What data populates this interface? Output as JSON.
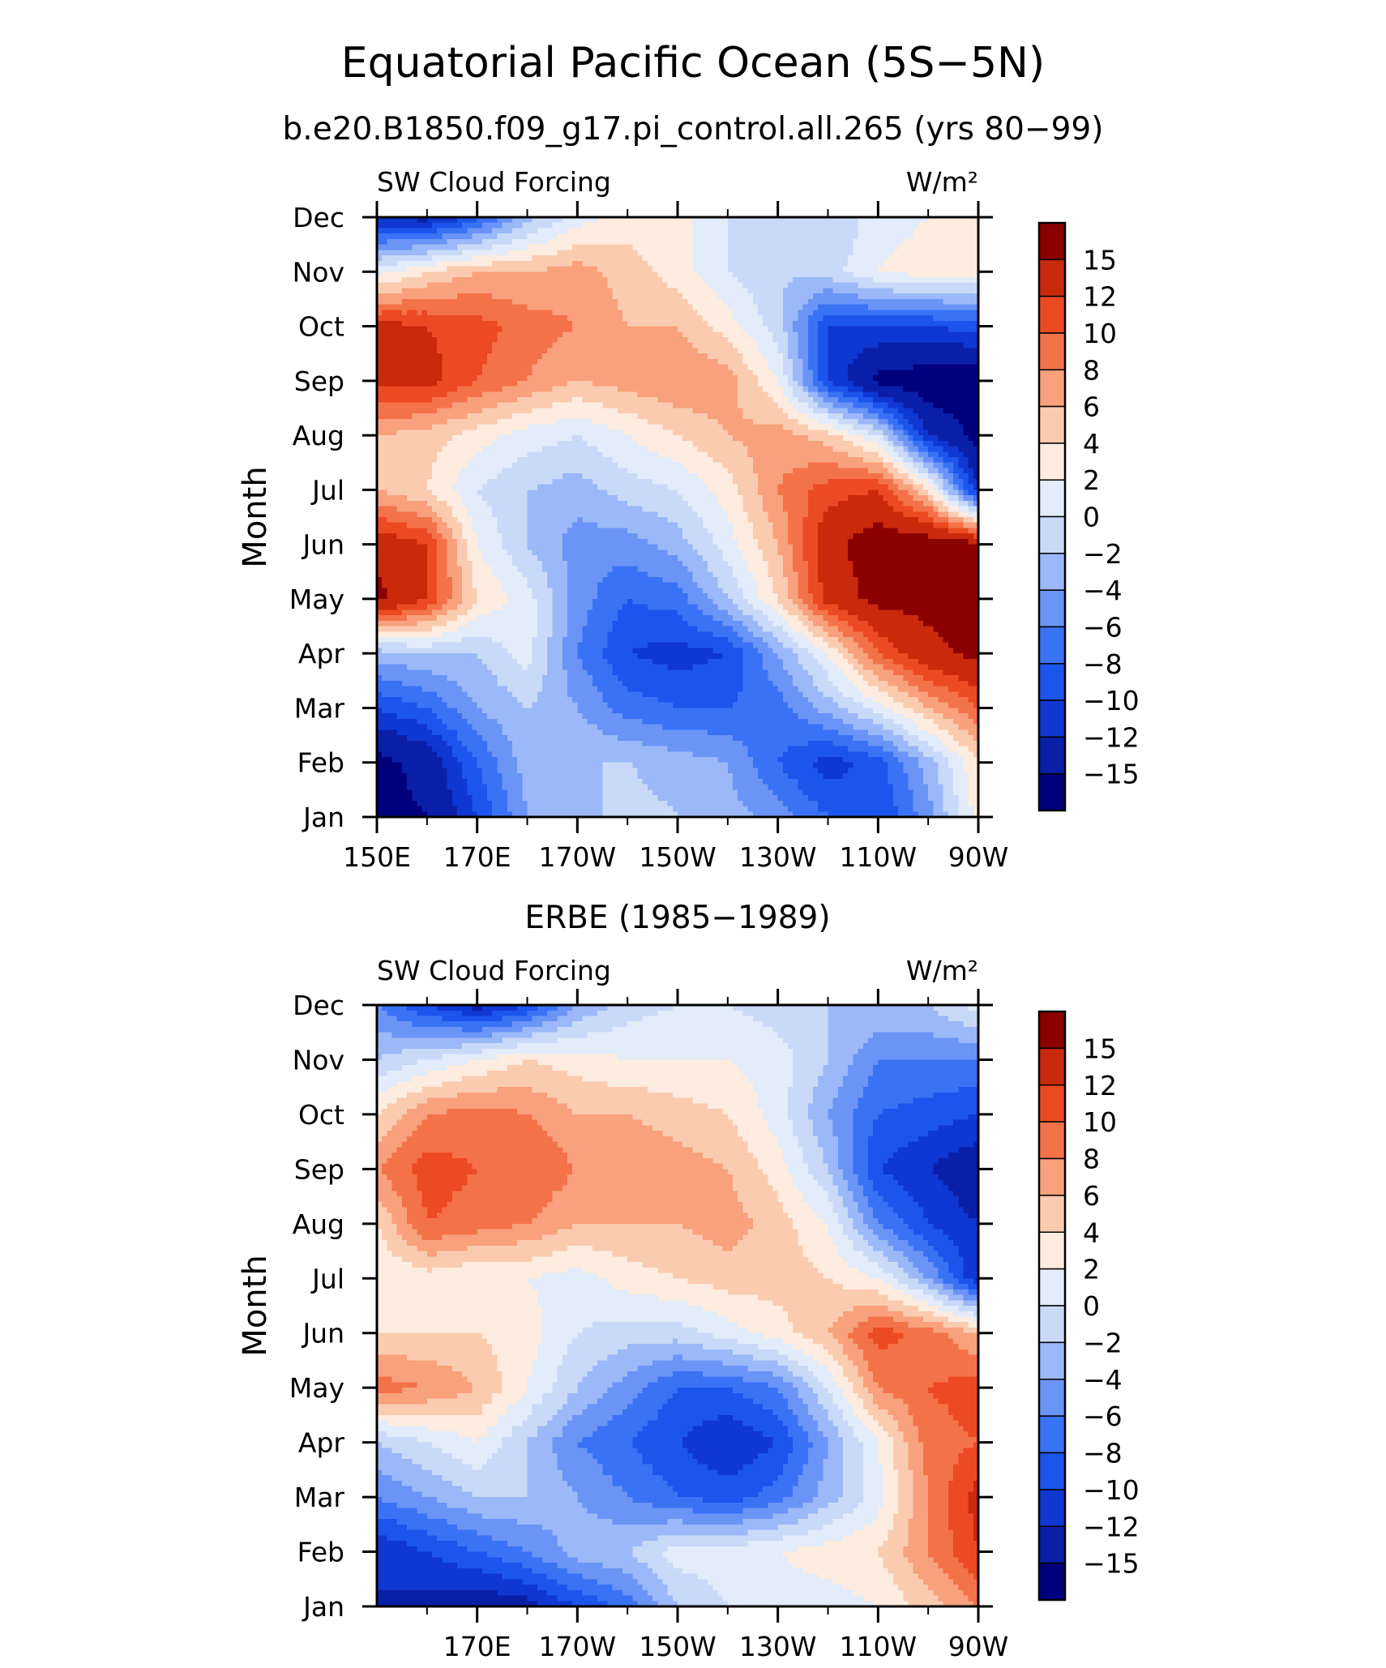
{
  "figure": {
    "title": "Equatorial Pacific Ocean (5S−5N)",
    "subtitle": "b.e20.B1850.f09_g17.pi_control.all.265 (yrs 80−99)"
  },
  "chart_data": [
    {
      "type": "heatmap",
      "title": "",
      "left_label": "SW Cloud Forcing",
      "right_label": "W/m²",
      "ylabel": "Month",
      "xlabel": "",
      "x_ticks": [
        "150E",
        "170E",
        "170W",
        "150W",
        "130W",
        "110W",
        "90W"
      ],
      "y_ticks": [
        "Jan",
        "Feb",
        "Mar",
        "Apr",
        "May",
        "Jun",
        "Jul",
        "Aug",
        "Sep",
        "Oct",
        "Nov",
        "Dec"
      ],
      "x_range": [
        "150E",
        "90W"
      ],
      "y_range": [
        "Jan",
        "Dec"
      ],
      "contour_levels": [
        -15,
        -12,
        -10,
        -8,
        -6,
        -4,
        -2,
        0,
        2,
        4,
        6,
        8,
        10,
        12,
        15
      ],
      "colorbar_labels": [
        "15",
        "12",
        "10",
        "8",
        "6",
        "4",
        "2",
        "0",
        "−2",
        "−4",
        "−6",
        "−8",
        "−10",
        "−12",
        "−15"
      ],
      "colors": [
        "#00007d",
        "#0a1fa8",
        "#0f37d1",
        "#1c55ec",
        "#3a72f5",
        "#6a94f6",
        "#9bb8f8",
        "#c9daf8",
        "#e2ecfa",
        "#fdecdf",
        "#fbcbb0",
        "#f8a17c",
        "#f4724a",
        "#ec4a22",
        "#c92a0c",
        "#8b0000"
      ],
      "x_lon": [
        150,
        160,
        170,
        180,
        190,
        200,
        210,
        220,
        230,
        240,
        250,
        260,
        270
      ],
      "rows": [
        [
          -16,
          -15,
          -10,
          -4,
          -3,
          -1,
          -2,
          -3,
          -5,
          -8,
          -10,
          -5,
          3
        ],
        [
          -16,
          -14,
          -8,
          -3,
          -2,
          -2,
          -3,
          -4,
          -8,
          -11,
          -9,
          -3,
          4
        ],
        [
          -10,
          -8,
          -4,
          -2,
          -4,
          -7,
          -8,
          -8,
          -7,
          -3,
          1,
          6,
          10
        ],
        [
          -3,
          -2,
          -2,
          1,
          -6,
          -10,
          -11,
          -10,
          -4,
          2,
          10,
          14,
          16
        ],
        [
          16,
          12,
          4,
          1,
          -5,
          -8,
          -7,
          -2,
          4,
          13,
          16,
          16,
          16
        ],
        [
          14,
          12,
          2,
          -2,
          -5,
          -5,
          -3,
          1,
          6,
          14,
          17,
          17,
          16
        ],
        [
          6,
          4,
          0,
          -2,
          -3,
          -1,
          0,
          3,
          8,
          11,
          12,
          4,
          -12
        ],
        [
          6,
          5,
          3,
          1,
          0,
          2,
          4,
          6,
          7,
          5,
          0,
          -12,
          -16
        ],
        [
          13,
          13,
          10,
          8,
          6,
          7,
          8,
          7,
          2,
          -10,
          -16,
          -17,
          -17
        ],
        [
          13,
          12,
          11,
          9,
          8,
          6,
          6,
          3,
          -1,
          -10,
          -10,
          -10,
          -9
        ],
        [
          1,
          4,
          6,
          6,
          7,
          5,
          3,
          0,
          -2,
          -1,
          2,
          3,
          3
        ],
        [
          -12,
          -13,
          -9,
          -3,
          1,
          3,
          3,
          0,
          -2,
          -2,
          1,
          2,
          4
        ]
      ]
    },
    {
      "type": "heatmap",
      "title": "ERBE (1985−1989)",
      "left_label": "SW Cloud Forcing",
      "right_label": "W/m²",
      "ylabel": "Month",
      "xlabel": "",
      "x_ticks": [
        "170E",
        "170W",
        "150W",
        "130W",
        "110W",
        "90W"
      ],
      "y_ticks": [
        "Jan",
        "Feb",
        "Mar",
        "Apr",
        "May",
        "Jun",
        "Jul",
        "Aug",
        "Sep",
        "Oct",
        "Nov",
        "Dec"
      ],
      "x_range": [
        "150E",
        "90W"
      ],
      "y_range": [
        "Jan",
        "Dec"
      ],
      "contour_levels": [
        -15,
        -12,
        -10,
        -8,
        -6,
        -4,
        -2,
        0,
        2,
        4,
        6,
        8,
        10,
        12,
        15
      ],
      "colorbar_labels": [
        "15",
        "12",
        "10",
        "8",
        "6",
        "4",
        "2",
        "0",
        "−2",
        "−4",
        "−6",
        "−8",
        "−10",
        "−12",
        "−15"
      ],
      "colors": [
        "#00007d",
        "#0a1fa8",
        "#0f37d1",
        "#1c55ec",
        "#3a72f5",
        "#6a94f6",
        "#9bb8f8",
        "#c9daf8",
        "#e2ecfa",
        "#fdecdf",
        "#fbcbb0",
        "#f8a17c",
        "#f4724a",
        "#ec4a22",
        "#c92a0c",
        "#8b0000"
      ],
      "x_lon": [
        150,
        160,
        170,
        180,
        190,
        200,
        210,
        220,
        230,
        240,
        250,
        260,
        270
      ],
      "rows": [
        [
          -12,
          -13,
          -14,
          -13,
          -10,
          -7,
          -2,
          0,
          1,
          1,
          2,
          5,
          8
        ],
        [
          -12,
          -10,
          -8,
          -6,
          -3,
          -2,
          1,
          1,
          2,
          3,
          4,
          8,
          12
        ],
        [
          -6,
          -4,
          -2,
          -2,
          -4,
          -6,
          -8,
          -9,
          -7,
          -3,
          1,
          8,
          13
        ],
        [
          -2,
          0,
          2,
          -2,
          -6,
          -8,
          -10,
          -12,
          -10,
          -4,
          2,
          9,
          10
        ],
        [
          9,
          8,
          6,
          2,
          -2,
          -5,
          -8,
          -8,
          -6,
          0,
          8,
          10,
          11
        ],
        [
          4,
          4,
          4,
          3,
          0,
          -1,
          -1,
          1,
          3,
          6,
          11,
          9,
          6
        ],
        [
          2,
          3,
          2,
          2,
          1,
          3,
          4,
          5,
          5,
          4,
          2,
          -4,
          -12
        ],
        [
          4,
          10,
          9,
          8,
          6,
          6,
          6,
          7,
          5,
          2,
          -6,
          -10,
          -12
        ],
        [
          8,
          11,
          10,
          10,
          8,
          8,
          7,
          6,
          3,
          -2,
          -10,
          -12,
          -14
        ],
        [
          4,
          8,
          9,
          8,
          6,
          6,
          5,
          4,
          1,
          -4,
          -8,
          -9,
          -10
        ],
        [
          -2,
          0,
          2,
          4,
          3,
          2,
          2,
          2,
          1,
          -2,
          -6,
          -6,
          -6
        ],
        [
          -6,
          -10,
          -13,
          -10,
          -4,
          -1,
          0,
          0,
          -1,
          -2,
          -2,
          -2,
          1
        ]
      ]
    }
  ]
}
